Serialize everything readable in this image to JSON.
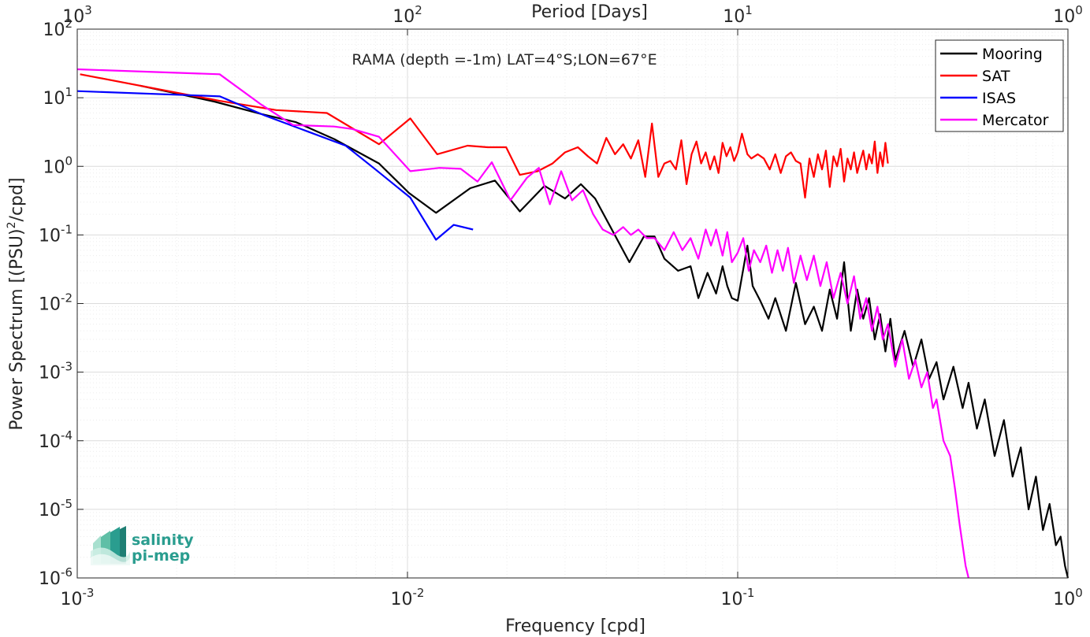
{
  "chart_data": {
    "type": "line",
    "title": "RAMA (depth =-1m) LAT=4°S;LON=67°E",
    "xlabel": "Frequency [cpd]",
    "ylabel_parts": [
      "Power Spectrum [(PSU)",
      "2",
      "/cpd]"
    ],
    "top_xlabel": "Period [Days]",
    "x_scale": "log",
    "y_scale": "log",
    "xlim": [
      0.001,
      1
    ],
    "ylim": [
      1e-06,
      100
    ],
    "grid": true,
    "legend_position": "top-right",
    "x_ticks": [
      {
        "value": 0.001,
        "base": "10",
        "exp": "-3"
      },
      {
        "value": 0.01,
        "base": "10",
        "exp": "-2"
      },
      {
        "value": 0.1,
        "base": "10",
        "exp": "-1"
      },
      {
        "value": 1,
        "base": "10",
        "exp": "0"
      }
    ],
    "top_ticks": [
      {
        "value": 0.001,
        "base": "10",
        "exp": "3"
      },
      {
        "value": 0.01,
        "base": "10",
        "exp": "2"
      },
      {
        "value": 0.1,
        "base": "10",
        "exp": "1"
      },
      {
        "value": 1,
        "base": "10",
        "exp": "0"
      }
    ],
    "y_ticks": [
      {
        "value": 100,
        "base": "10",
        "exp": "2"
      },
      {
        "value": 10,
        "base": "10",
        "exp": "1"
      },
      {
        "value": 1,
        "base": "10",
        "exp": "0"
      },
      {
        "value": 0.1,
        "base": "10",
        "exp": "-1"
      },
      {
        "value": 0.01,
        "base": "10",
        "exp": "-2"
      },
      {
        "value": 0.001,
        "base": "10",
        "exp": "-3"
      },
      {
        "value": 0.0001,
        "base": "10",
        "exp": "-4"
      },
      {
        "value": 1e-05,
        "base": "10",
        "exp": "-5"
      },
      {
        "value": 1e-06,
        "base": "10",
        "exp": "-6"
      }
    ],
    "series": [
      {
        "name": "Mooring",
        "color": "#000000",
        "x": [
          0.00155,
          0.0026,
          0.0036,
          0.0046,
          0.006,
          0.0082,
          0.0101,
          0.0122,
          0.0155,
          0.0184,
          0.0219,
          0.026,
          0.03,
          0.0335,
          0.037,
          0.042,
          0.047,
          0.052,
          0.056,
          0.06,
          0.066,
          0.072,
          0.076,
          0.081,
          0.086,
          0.09,
          0.093,
          0.096,
          0.1,
          0.107,
          0.111,
          0.117,
          0.124,
          0.13,
          0.14,
          0.15,
          0.16,
          0.17,
          0.18,
          0.19,
          0.2,
          0.21,
          0.22,
          0.23,
          0.24,
          0.25,
          0.26,
          0.27,
          0.28,
          0.29,
          0.3,
          0.32,
          0.34,
          0.36,
          0.38,
          0.4,
          0.42,
          0.45,
          0.48,
          0.5,
          0.53,
          0.56,
          0.6,
          0.64,
          0.68,
          0.72,
          0.76,
          0.8,
          0.84,
          0.88,
          0.92,
          0.95,
          0.98,
          1.0
        ],
        "y": [
          15,
          8.8,
          5.8,
          4.4,
          2.5,
          1.1,
          0.41,
          0.21,
          0.48,
          0.62,
          0.22,
          0.52,
          0.34,
          0.55,
          0.34,
          0.11,
          0.04,
          0.095,
          0.095,
          0.045,
          0.03,
          0.035,
          0.012,
          0.028,
          0.014,
          0.035,
          0.018,
          0.012,
          0.011,
          0.07,
          0.018,
          0.011,
          0.006,
          0.012,
          0.004,
          0.02,
          0.005,
          0.009,
          0.004,
          0.016,
          0.006,
          0.04,
          0.004,
          0.016,
          0.006,
          0.012,
          0.003,
          0.007,
          0.002,
          0.006,
          0.0015,
          0.004,
          0.0012,
          0.003,
          0.0008,
          0.0014,
          0.0004,
          0.0012,
          0.0003,
          0.0007,
          0.00015,
          0.0004,
          6e-05,
          0.0002,
          3e-05,
          8e-05,
          1e-05,
          3e-05,
          5e-06,
          1.2e-05,
          3e-06,
          4e-06,
          1.5e-06,
          1e-06
        ]
      },
      {
        "name": "SAT",
        "color": "#ff0000",
        "x": [
          0.00102,
          0.0027,
          0.004,
          0.0057,
          0.0082,
          0.0102,
          0.0123,
          0.0152,
          0.0175,
          0.0199,
          0.0219,
          0.0248,
          0.0275,
          0.03,
          0.0328,
          0.0352,
          0.0375,
          0.04,
          0.0425,
          0.045,
          0.0475,
          0.05,
          0.0525,
          0.055,
          0.0575,
          0.06,
          0.0625,
          0.065,
          0.0675,
          0.07,
          0.0725,
          0.075,
          0.0775,
          0.08,
          0.0825,
          0.085,
          0.0875,
          0.09,
          0.0925,
          0.095,
          0.0975,
          0.1,
          0.103,
          0.107,
          0.11,
          0.115,
          0.12,
          0.125,
          0.13,
          0.135,
          0.14,
          0.145,
          0.15,
          0.155,
          0.16,
          0.165,
          0.17,
          0.175,
          0.18,
          0.185,
          0.19,
          0.195,
          0.2,
          0.205,
          0.21,
          0.215,
          0.22,
          0.225,
          0.23,
          0.235,
          0.24,
          0.245,
          0.25,
          0.255,
          0.26,
          0.265,
          0.27,
          0.275,
          0.28,
          0.285
        ],
        "y": [
          22,
          9,
          6.6,
          6,
          2.1,
          5,
          1.5,
          2,
          1.9,
          1.9,
          0.75,
          0.85,
          1.1,
          1.6,
          1.9,
          1.4,
          1.1,
          2.6,
          1.5,
          2.1,
          1.3,
          2.4,
          0.7,
          4.2,
          0.7,
          1.1,
          1.2,
          0.9,
          2.4,
          0.55,
          1.5,
          2.3,
          1.1,
          1.6,
          0.9,
          1.4,
          0.8,
          2.2,
          1.4,
          1.9,
          1.2,
          1.6,
          3,
          1.5,
          1.3,
          1.5,
          1.3,
          0.9,
          1.5,
          0.8,
          1.4,
          1.6,
          1.2,
          1.1,
          0.35,
          1.3,
          0.7,
          1.5,
          0.9,
          1.7,
          0.5,
          1.4,
          1,
          1.8,
          0.6,
          1.3,
          0.9,
          1.6,
          0.8,
          1.2,
          1.7,
          0.9,
          1.5,
          1.1,
          2.3,
          0.8,
          1.6,
          1,
          2.2,
          1.1
        ]
      },
      {
        "name": "ISAS",
        "color": "#0000ff",
        "x": [
          0.001,
          0.0027,
          0.0037,
          0.005,
          0.0065,
          0.008,
          0.0102,
          0.0122,
          0.0138,
          0.0158
        ],
        "y": [
          12.5,
          10.5,
          5.5,
          3.2,
          2,
          0.9,
          0.35,
          0.085,
          0.14,
          0.12
        ]
      },
      {
        "name": "Mercator",
        "color": "#ff00ff",
        "x": [
          0.001,
          0.0027,
          0.0036,
          0.0045,
          0.006,
          0.0068,
          0.0082,
          0.0102,
          0.0125,
          0.0145,
          0.0163,
          0.018,
          0.0205,
          0.023,
          0.025,
          0.027,
          0.0292,
          0.0315,
          0.034,
          0.0365,
          0.039,
          0.042,
          0.045,
          0.0475,
          0.05,
          0.053,
          0.056,
          0.06,
          0.064,
          0.068,
          0.072,
          0.076,
          0.08,
          0.083,
          0.086,
          0.09,
          0.093,
          0.096,
          0.1,
          0.104,
          0.108,
          0.112,
          0.117,
          0.122,
          0.127,
          0.132,
          0.137,
          0.142,
          0.148,
          0.155,
          0.162,
          0.17,
          0.178,
          0.186,
          0.195,
          0.205,
          0.215,
          0.225,
          0.235,
          0.245,
          0.255,
          0.265,
          0.275,
          0.285,
          0.3,
          0.315,
          0.33,
          0.345,
          0.36,
          0.375,
          0.39,
          0.4,
          0.42,
          0.44,
          0.455,
          0.47,
          0.49,
          0.5
        ],
        "y": [
          26,
          22,
          8,
          4,
          3.8,
          3.5,
          2.7,
          0.85,
          0.95,
          0.92,
          0.6,
          1.15,
          0.32,
          0.68,
          0.95,
          0.28,
          0.85,
          0.32,
          0.45,
          0.2,
          0.12,
          0.1,
          0.13,
          0.1,
          0.12,
          0.09,
          0.09,
          0.06,
          0.11,
          0.06,
          0.09,
          0.045,
          0.12,
          0.07,
          0.12,
          0.05,
          0.11,
          0.04,
          0.055,
          0.09,
          0.03,
          0.06,
          0.04,
          0.07,
          0.028,
          0.06,
          0.03,
          0.065,
          0.02,
          0.05,
          0.022,
          0.05,
          0.018,
          0.04,
          0.012,
          0.028,
          0.01,
          0.025,
          0.006,
          0.012,
          0.004,
          0.009,
          0.003,
          0.005,
          0.0012,
          0.003,
          0.0008,
          0.0015,
          0.0006,
          0.001,
          0.0003,
          0.0004,
          0.0001,
          6e-05,
          2e-05,
          6e-06,
          1.5e-06,
          1e-06
        ]
      }
    ]
  },
  "logo": {
    "line1": "salinity",
    "line2": "pi-mep"
  }
}
